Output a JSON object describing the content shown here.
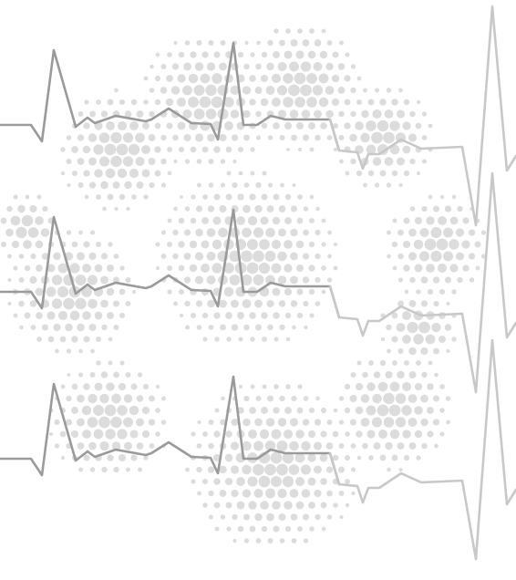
{
  "artwork": {
    "background": "#ffffff",
    "dot_color": "#dcdcdc",
    "pulse_color_dark": "#9a9a9a",
    "pulse_color_light": "#c8c8c8",
    "pulse_line_count": 3,
    "text": []
  }
}
